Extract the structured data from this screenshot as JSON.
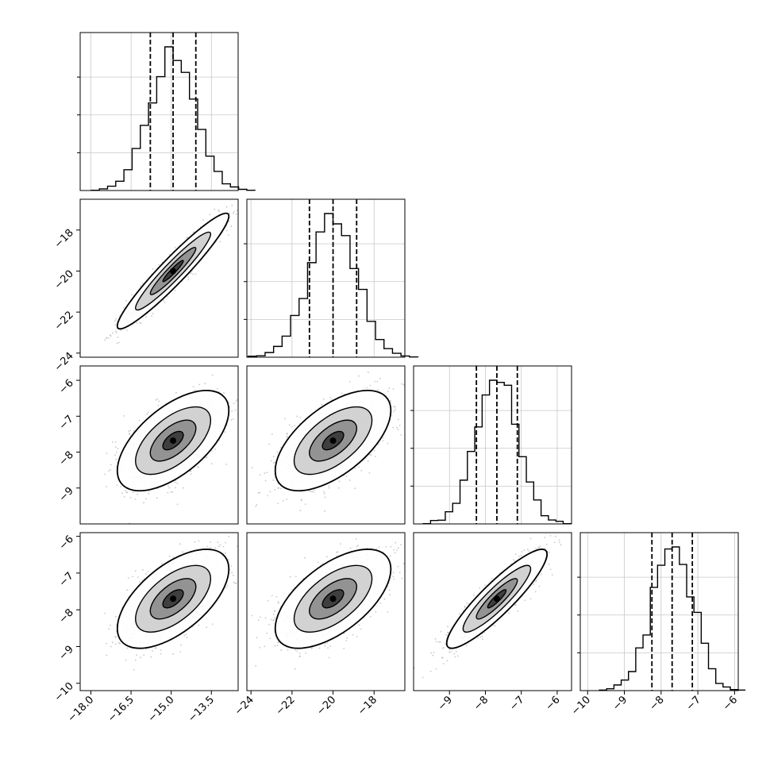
{
  "chart_data": {
    "type": "corner",
    "title": "",
    "grid": true,
    "parameters": [
      {
        "range": [
          -18.4,
          -12.5
        ],
        "ticks": [
          -18.0,
          -16.5,
          -15.0,
          -13.5
        ],
        "tick_labels": [
          "−18.0",
          "−16.5",
          "−15.0",
          "−13.5"
        ],
        "mean": -14.93,
        "sigma": 0.85,
        "quantiles": [
          -15.78,
          -14.93,
          -14.08
        ]
      },
      {
        "range": [
          -24.2,
          -16.5
        ],
        "ticks": [
          -24,
          -22,
          -20,
          -18
        ],
        "tick_labels": [
          "−24",
          "−22",
          "−20",
          "−18"
        ],
        "mean": -20.0,
        "sigma": 1.15,
        "quantiles": [
          -21.15,
          -20.0,
          -18.85
        ]
      },
      {
        "range": [
          -10.0,
          -5.6
        ],
        "ticks": [
          -9,
          -8,
          -7,
          -6
        ],
        "tick_labels": [
          "−9",
          "−8",
          "−7",
          "−6"
        ],
        "mean": -7.68,
        "sigma": 0.57,
        "quantiles": [
          -8.25,
          -7.68,
          -7.11
        ]
      },
      {
        "range": [
          -10.2,
          -5.9
        ],
        "ticks": [
          -10,
          -9,
          -8,
          -7,
          -6
        ],
        "tick_labels": [
          "−10",
          "−9",
          "−8",
          "−7",
          "−6"
        ],
        "mean": -7.7,
        "sigma": 0.55,
        "quantiles": [
          -8.25,
          -7.7,
          -7.15
        ]
      }
    ],
    "y_axis_ticks": {
      "1": {
        "ticks": [
          -24,
          -22,
          -20,
          -18
        ],
        "tick_labels": [
          "−24",
          "−22",
          "−20",
          "−18"
        ],
        "range": [
          -24.2,
          -16.5
        ]
      },
      "2": {
        "ticks": [
          -9,
          -8,
          -7,
          -6
        ],
        "tick_labels": [
          "−9",
          "−8",
          "−7",
          "−6"
        ],
        "range": [
          -10.0,
          -5.6
        ]
      },
      "3": {
        "ticks": [
          -10,
          -9,
          -8,
          -7,
          -6
        ],
        "tick_labels": [
          "−10",
          "−9",
          "−8",
          "−7",
          "−6"
        ],
        "range": [
          -10.2,
          -5.9
        ]
      }
    },
    "correlations": {
      "1-0": 0.95,
      "2-0": 0.6,
      "2-1": 0.6,
      "3-0": 0.6,
      "3-1": 0.6,
      "3-2": 0.9
    }
  }
}
